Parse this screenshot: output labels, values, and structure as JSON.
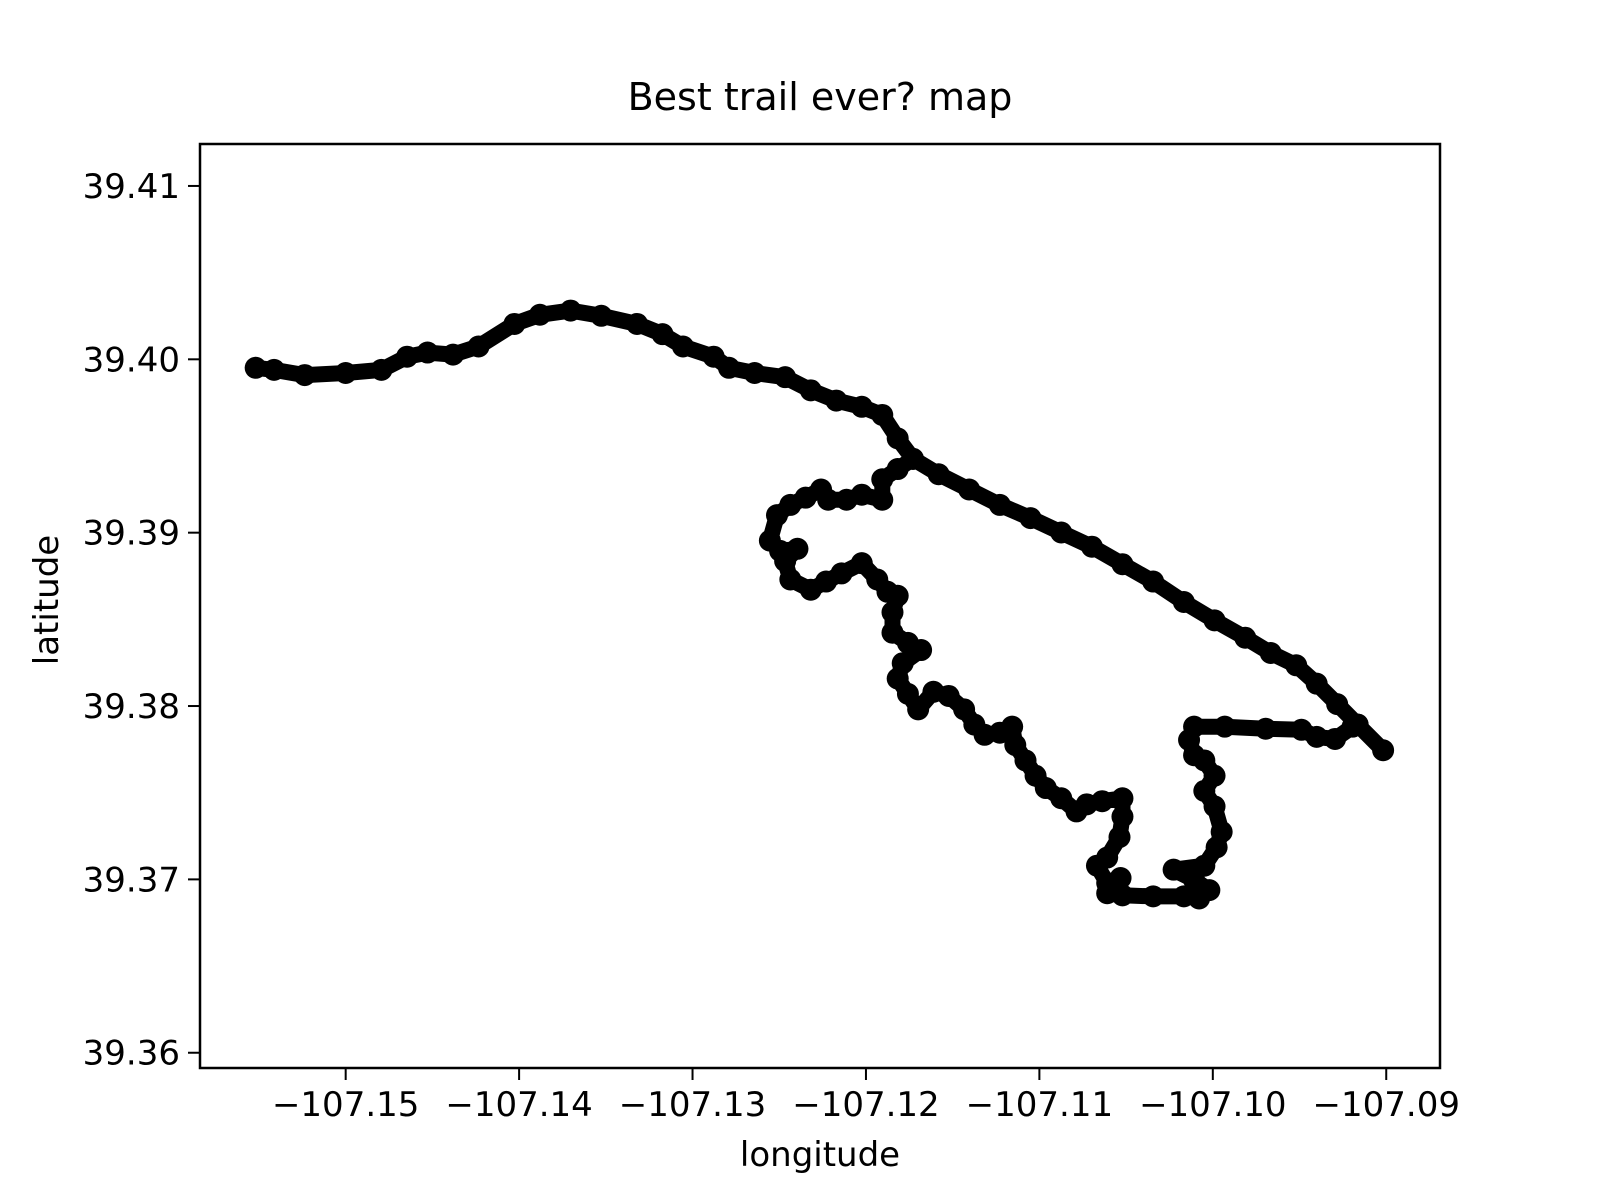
{
  "chart_data": {
    "type": "line",
    "title": "Best trail ever? map",
    "xlabel": "longitude",
    "ylabel": "latitude",
    "color": "#000000",
    "xlim": [
      -107.1584,
      -107.0869
    ],
    "ylim": [
      39.35912,
      39.41242
    ],
    "xticks": [
      {
        "value": -107.15,
        "label": "−107.15"
      },
      {
        "value": -107.14,
        "label": "−107.14"
      },
      {
        "value": -107.13,
        "label": "−107.13"
      },
      {
        "value": -107.12,
        "label": "−107.12"
      },
      {
        "value": -107.11,
        "label": "−107.11"
      },
      {
        "value": -107.1,
        "label": "−107.10"
      },
      {
        "value": -107.09,
        "label": "−107.09"
      }
    ],
    "yticks": [
      39.36,
      39.37,
      39.38,
      39.39,
      {
        "value": 39.4,
        "label": "39.40"
      },
      39.41
    ],
    "x": [
      -107.15519,
      -107.15413,
      -107.15236,
      -107.15,
      -107.14794,
      -107.14646,
      -107.14528,
      -107.14381,
      -107.14234,
      -107.14027,
      -107.1388,
      -107.13703,
      -107.13526,
      -107.1332,
      -107.13173,
      -107.13055,
      -107.12878,
      -107.1279,
      -107.12642,
      -107.12466,
      -107.12318,
      -107.12171,
      -107.12024,
      -107.11906,
      -107.11817,
      -107.11729,
      -107.11581,
      -107.11405,
      -107.11228,
      -107.11051,
      -107.10874,
      -107.10697,
      -107.10521,
      -107.10344,
      -107.10167,
      -107.0999,
      -107.09813,
      -107.09666,
      -107.09519,
      -107.09401,
      -107.09283,
      -107.09165,
      -107.09018,
      null,
      -107.11729,
      -107.11817,
      -107.11906,
      -107.11906,
      -107.12024,
      -107.12112,
      -107.12218,
      -107.12259,
      -107.12348,
      -107.12436,
      -107.12513,
      -107.12554,
      -107.12495,
      -107.12395,
      -107.12466,
      -107.12436,
      -107.12318,
      -107.1223,
      -107.12141,
      -107.12024,
      -107.11935,
      -107.11876,
      -107.11817,
      -107.11847,
      -107.11847,
      -107.11758,
      -107.11682,
      -107.11788,
      -107.11817,
      -107.11758,
      -107.11699,
      -107.11611,
      -107.11523,
      -107.11434,
      -107.11375,
      -107.11316,
      -107.11228,
      -107.11157,
      -107.11139,
      -107.1108,
      -107.11022,
      -107.10963,
      -107.10874,
      -107.10786,
      -107.10727,
      -107.10638,
      -107.10521,
      -107.10521,
      -107.10538,
      -107.10609,
      -107.10668,
      -107.10609,
      -107.10532,
      -107.10609,
      -107.10521,
      -107.10344,
      -107.10167,
      -107.10079,
      -107.1002,
      -107.10108,
      -107.10226,
      -107.10049,
      -107.09978,
      -107.09949,
      -107.0999,
      -107.10049,
      -107.0999,
      -107.10049,
      -107.10108,
      -107.10137,
      -107.10108,
      -107.09931,
      -107.09695,
      -107.09489,
      -107.09401,
      -107.09295,
      -107.09194,
      -107.09165
    ],
    "y": [
      39.39951,
      39.39939,
      39.39909,
      39.39921,
      39.39939,
      39.40015,
      39.40039,
      39.40027,
      39.40074,
      39.40204,
      39.40257,
      39.40281,
      39.40251,
      39.40204,
      39.40145,
      39.40074,
      39.40015,
      39.39951,
      39.39921,
      39.39897,
      39.39821,
      39.39762,
      39.39726,
      39.39679,
      39.39544,
      39.39426,
      39.39337,
      39.39249,
      39.3916,
      39.39084,
      39.39001,
      39.38919,
      39.38818,
      39.38718,
      39.386,
      39.38494,
      39.38394,
      39.38306,
      39.38235,
      39.38129,
      39.38011,
      39.37893,
      39.37745,
      null,
      39.39426,
      39.39367,
      39.39308,
      39.3919,
      39.39219,
      39.3919,
      39.3919,
      39.39249,
      39.39202,
      39.3916,
      39.39101,
      39.38954,
      39.38895,
      39.38907,
      39.38836,
      39.3873,
      39.38671,
      39.38718,
      39.38765,
      39.38824,
      39.3873,
      39.38659,
      39.38636,
      39.38541,
      39.38423,
      39.38364,
      39.38323,
      39.38247,
      39.38158,
      39.3807,
      39.37981,
      39.38082,
      39.38058,
      39.37981,
      39.37893,
      39.37834,
      39.37846,
      39.37881,
      39.37775,
      39.37686,
      39.37598,
      39.37527,
      39.37468,
      39.37392,
      39.37433,
      39.37451,
      39.37468,
      39.37362,
      39.37244,
      39.37126,
      39.37079,
      39.36979,
      39.37008,
      39.3692,
      39.36908,
      39.36902,
      39.36902,
      39.3689,
      39.36938,
      39.36997,
      39.37056,
      39.37079,
      39.37185,
      39.37274,
      39.37421,
      39.3751,
      39.37598,
      39.37686,
      39.37716,
      39.37804,
      39.37881,
      39.37881,
      39.37869,
      39.37863,
      39.37822,
      39.3781,
      39.37881,
      39.37893
    ]
  }
}
